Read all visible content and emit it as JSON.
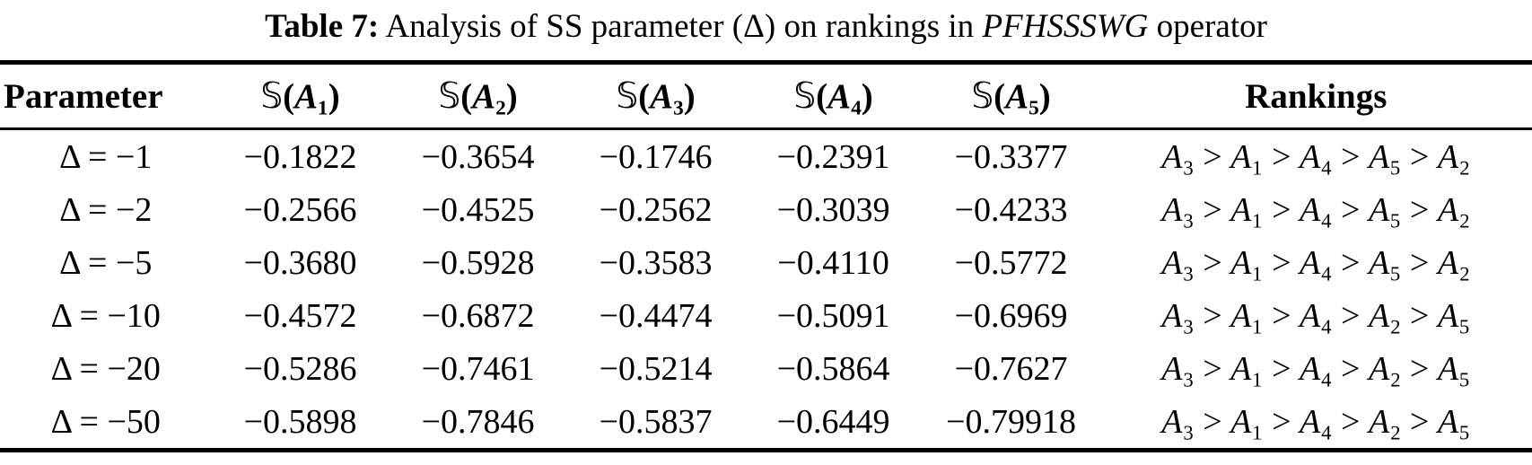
{
  "caption": {
    "label": "Table 7:",
    "text": "Analysis of SS parameter (Δ) on rankings in",
    "operator_name": "PFHSSSWG",
    "suffix": "operator"
  },
  "table": {
    "columns": [
      "Parameter",
      "𝕊(A₁)",
      "𝕊(A₂)",
      "𝕊(A₃)",
      "𝕊(A₄)",
      "𝕊(A₅)",
      "Rankings"
    ],
    "rows": [
      {
        "parameter": "Δ = −1",
        "scores": [
          "−0.1822",
          "−0.3654",
          "−0.1746",
          "−0.2391",
          "−0.3377"
        ],
        "ranking": "A₃ > A₁ > A₄ > A₅ > A₂"
      },
      {
        "parameter": "Δ = −2",
        "scores": [
          "−0.2566",
          "−0.4525",
          "−0.2562",
          "−0.3039",
          "−0.4233"
        ],
        "ranking": "A₃ > A₁ > A₄ > A₅ > A₂"
      },
      {
        "parameter": "Δ = −5",
        "scores": [
          "−0.3680",
          "−0.5928",
          "−0.3583",
          "−0.4110",
          "−0.5772"
        ],
        "ranking": "A₃ > A₁ > A₄ > A₅ > A₂"
      },
      {
        "parameter": "Δ = −10",
        "scores": [
          "−0.4572",
          "−0.6872",
          "−0.4474",
          "−0.5091",
          "−0.6969"
        ],
        "ranking": "A₃ > A₁ > A₄ > A₂ > A₅"
      },
      {
        "parameter": "Δ = −20",
        "scores": [
          "−0.5286",
          "−0.7461",
          "−0.5214",
          "−0.5864",
          "−0.7627"
        ],
        "ranking": "A₃ > A₁ > A₄ > A₂ > A₅"
      },
      {
        "parameter": "Δ = −50",
        "scores": [
          "−0.5898",
          "−0.7846",
          "−0.5837",
          "−0.6449",
          "−0.79918"
        ],
        "ranking": "A₃ > A₁ > A₄ > A₂ > A₅"
      }
    ]
  },
  "colors": {
    "text": "#000000",
    "background": "#ffffff",
    "rule": "#000000"
  }
}
